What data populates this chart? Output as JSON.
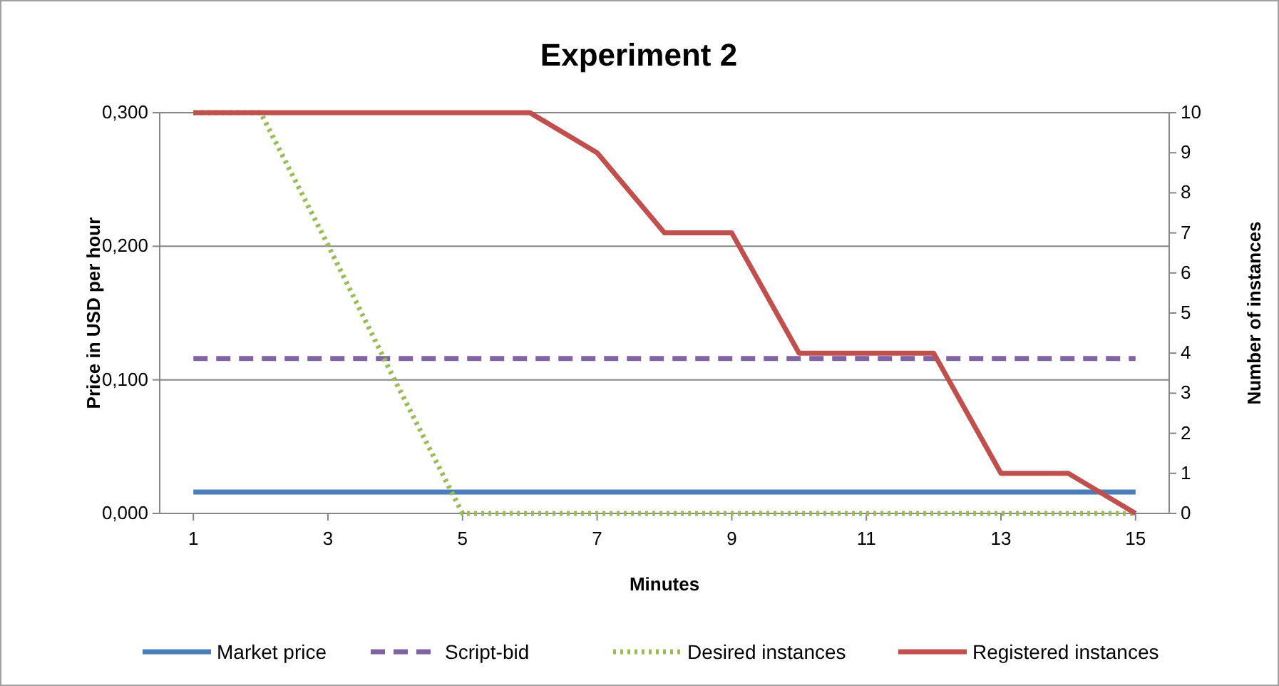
{
  "chart_data": {
    "type": "line",
    "title": "Experiment 2",
    "xlabel": "Minutes",
    "ylabel": "Price in USD per hour",
    "y2label": "Number of instances",
    "x": [
      1,
      2,
      3,
      4,
      5,
      6,
      7,
      8,
      9,
      10,
      11,
      12,
      13,
      14,
      15
    ],
    "xlim": [
      0.5,
      15.5
    ],
    "xticks": [
      1,
      3,
      5,
      7,
      9,
      11,
      13,
      15
    ],
    "ylim": [
      0,
      0.3
    ],
    "yticks": [
      {
        "value": 0,
        "label": "0,000"
      },
      {
        "value": 0.1,
        "label": "0,100"
      },
      {
        "value": 0.2,
        "label": "0,200"
      },
      {
        "value": 0.3,
        "label": "0,300"
      }
    ],
    "y2lim": [
      0,
      10
    ],
    "y2ticks": [
      0,
      1,
      2,
      3,
      4,
      5,
      6,
      7,
      8,
      9,
      10
    ],
    "grid": "y",
    "legend": "bottom",
    "series": [
      {
        "name": "Market price",
        "color": "#4a7ebb",
        "line_style": "solid",
        "values": [
          0.016,
          0.016,
          0.016,
          0.016,
          0.016,
          0.016,
          0.016,
          0.016,
          0.016,
          0.016,
          0.016,
          0.016,
          0.016,
          0.016,
          0.016
        ]
      },
      {
        "name": "Script-bid",
        "color": "#8064a2",
        "line_style": "dashed",
        "values": [
          0.116,
          0.116,
          0.116,
          0.116,
          0.116,
          0.116,
          0.116,
          0.116,
          0.116,
          0.116,
          0.116,
          0.116,
          0.116,
          0.116,
          0.116
        ]
      },
      {
        "name": "Desired instances",
        "color": "#9bbb59",
        "line_style": "dotted",
        "axis": "y2",
        "values": [
          10,
          10,
          6.7,
          3.3,
          0,
          0,
          0,
          0,
          0,
          0,
          0,
          0,
          0,
          0,
          0
        ]
      },
      {
        "name": "Registered instances",
        "color": "#c0504d",
        "line_style": "solid",
        "axis": "y2",
        "values": [
          10,
          10,
          10,
          10,
          10,
          10,
          9,
          7,
          7,
          4,
          4,
          4,
          1,
          1,
          0
        ]
      }
    ]
  }
}
